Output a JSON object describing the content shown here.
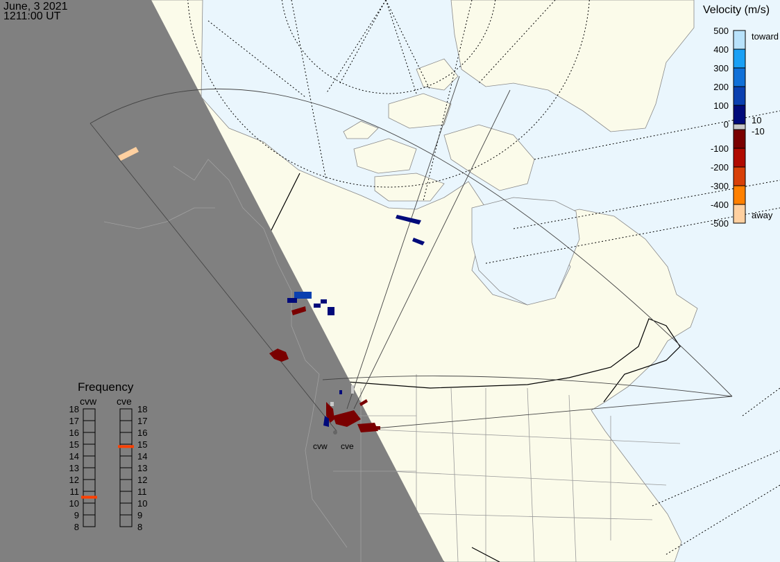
{
  "header": {
    "date": "June, 3 2021",
    "time": "1211:00 UT"
  },
  "legend": {
    "title": "Velocity (m/s)",
    "ticks": [
      "500",
      "400",
      "300",
      "200",
      "100",
      "0",
      "-100",
      "-200",
      "-300",
      "-400",
      "-500"
    ],
    "toward_label": "toward",
    "away_label": "away",
    "gs_upper": "10",
    "gs_lower": "-10",
    "colors": [
      "#b8e2fb",
      "#1aa0f5",
      "#1070d8",
      "#0a40b0",
      "#000a7a",
      "#7a0000",
      "#b00a00",
      "#d84008",
      "#ff8000",
      "#ffd0a0"
    ]
  },
  "frequency": {
    "title": "Frequency",
    "radars": [
      {
        "name": "cvw",
        "value_mhz": 10.5
      },
      {
        "name": "cve",
        "value_mhz": 14.8
      }
    ],
    "ticks": [
      "18",
      "17",
      "16",
      "15",
      "14",
      "13",
      "12",
      "11",
      "10",
      "9",
      "8"
    ],
    "marker_color": "#ff4000"
  },
  "map": {
    "radar_labels": [
      "cvw",
      "cve"
    ],
    "colors": {
      "ocean": "#eaf6fd",
      "land": "#fbfbea",
      "night": "#808080"
    }
  }
}
